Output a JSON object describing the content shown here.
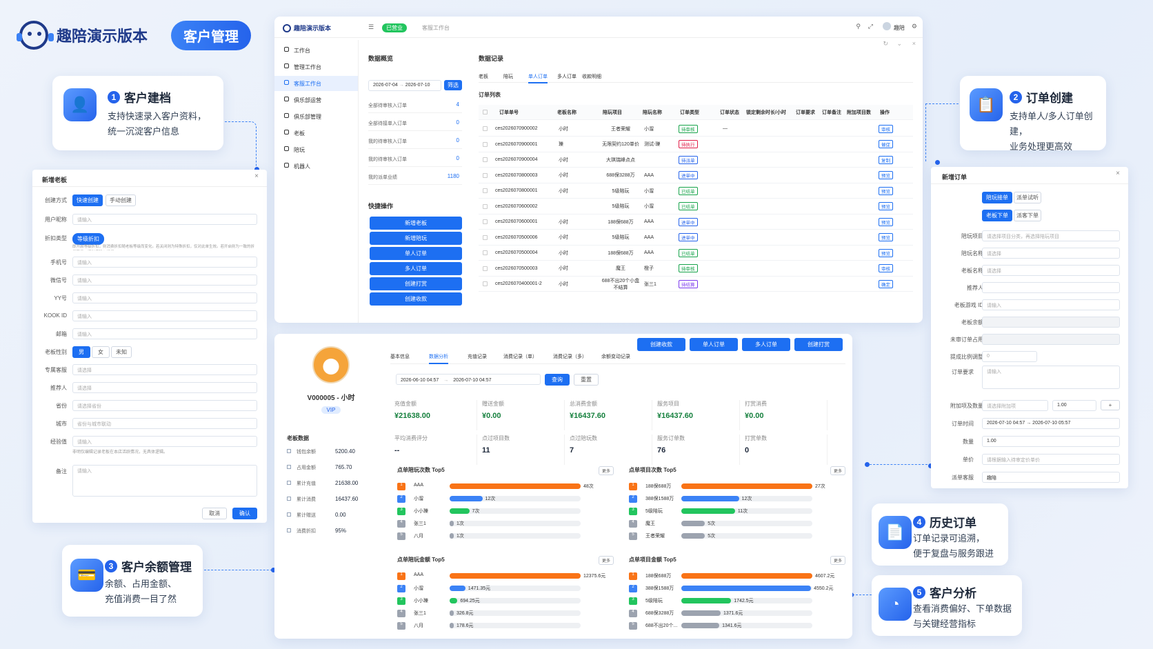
{
  "brand": {
    "name": "趣陪演示版本",
    "tag": "客户管理"
  },
  "features": [
    {
      "no": "1",
      "title": "客户建档",
      "desc1": "支持快速录入客户资料，",
      "desc2": "统一沉淀客户信息"
    },
    {
      "no": "2",
      "title": "订单创建",
      "desc1": "支持单人/多人订单创建，",
      "desc2": "业务处理更高效"
    },
    {
      "no": "3",
      "title": "客户余额管理",
      "desc1": "余额、占用金额、",
      "desc2": "充值消费一目了然"
    },
    {
      "no": "4",
      "title": "历史订单",
      "desc1": "订单记录可追溯，",
      "desc2": "便于复盘与服务跟进"
    },
    {
      "no": "5",
      "title": "客户分析",
      "desc1": "查看消费偏好、下单数据",
      "desc2": "与关键经营指标"
    }
  ],
  "newBoss": {
    "title": "新增老板",
    "mode_label": "创建方式",
    "mode_fast": "快速创建",
    "mode_manual": "手动创建",
    "fields": [
      {
        "l": "用户昵称",
        "p": "请输入"
      },
      {
        "l": "折扣类型",
        "p": ""
      },
      {
        "l": "手机号",
        "p": "请输入"
      },
      {
        "l": "微信号",
        "p": "请输入"
      },
      {
        "l": "YY号",
        "p": "请输入"
      },
      {
        "l": "KOOK ID",
        "p": "请输入"
      },
      {
        "l": "邮箱",
        "p": "请输入"
      }
    ],
    "discount_tag": "等级折扣",
    "discount_hint": "即开启等级折扣，则消费折扣随老板等级而变化。若关闭则为特殊折扣，仅对此单生效。若开启则为一致的折扣等级，请对应输入折扣。",
    "gender_label": "老板性别",
    "genders": [
      "男",
      "女",
      "未知"
    ],
    "fields2": [
      {
        "l": "专属客服",
        "p": "请选择"
      },
      {
        "l": "推荐人",
        "p": "请选择"
      },
      {
        "l": "省份",
        "p": "请选择省份"
      },
      {
        "l": "城市",
        "p": "省份与城市联动"
      },
      {
        "l": "经验值",
        "p": "请输入"
      }
    ],
    "exp_hint": "非明仅编辑记录老板在本店活跃情况，无具体逻辑。",
    "remark_label": "备注",
    "remark_p": "请输入",
    "cancel": "取消",
    "ok": "确认"
  },
  "app": {
    "title": "趣陪演示版本",
    "status": "已营业",
    "crumb": "客服工作台",
    "user": "趣陪",
    "menu": [
      "工作台",
      "管理工作台",
      "客服工作台",
      "俱乐部运营",
      "俱乐部管理",
      "老板",
      "陪玩",
      "机器人"
    ],
    "overview": {
      "title": "数据概览",
      "date1": "2026-07-04",
      "date2": "2026-07-10",
      "filter": "筛选",
      "items": [
        {
          "l": "全部待审核入订单",
          "v": "4"
        },
        {
          "l": "全部待接单入订单",
          "v": "0"
        },
        {
          "l": "我的待审核入订单",
          "v": "0"
        },
        {
          "l": "我的待审核入订单",
          "v": "0"
        },
        {
          "l": "我的派单业绩",
          "v": "1180"
        }
      ]
    },
    "quick": {
      "title": "快捷操作",
      "buttons": [
        "新增老板",
        "新增陪玩",
        "单人订单",
        "多人订单",
        "创建打赏",
        "创建收款"
      ]
    },
    "records": {
      "title": "数据记录",
      "tabs": [
        "老板",
        "陪玩",
        "单人订单",
        "多人订单",
        "收款明细"
      ],
      "list": "订单列表",
      "cols": [
        "订单单号",
        "老板名称",
        "陪玩项目",
        "陪玩名称",
        "订单类型",
        "订单状态",
        "锁定剩余时长/小时",
        "订单要求",
        "订单备注",
        "附加项目数",
        "操作"
      ],
      "rows": [
        {
          "no": "ces2026070900002",
          "boss": "小时",
          "item": "王者荣耀",
          "pw": "小溜",
          "type": "待审核",
          "tc": "#16a34a",
          "st": "—",
          "op": "审核"
        },
        {
          "no": "ces2026070900001",
          "boss": "瓅",
          "item": "无限契约120单价",
          "pw": "测试-瓅",
          "type": "待执行",
          "tc": "#e11d48",
          "st": "",
          "op": "催促"
        },
        {
          "no": "ces2026070900004",
          "boss": "小时",
          "item": "大琪瑞峰点点",
          "pw": "",
          "type": "待派单",
          "tc": "#2563eb",
          "st": "",
          "op": "复制"
        },
        {
          "no": "ces2026070800003",
          "boss": "小时",
          "item": "688保3288万",
          "pw": "AAA",
          "type": "进单中",
          "tc": "#2563eb",
          "st": "",
          "op": "预览"
        },
        {
          "no": "ces2026070800001",
          "boss": "小时",
          "item": "5级陪玩",
          "pw": "小溜",
          "type": "已结单",
          "tc": "#16a34a",
          "st": "",
          "op": "预览"
        },
        {
          "no": "ces2026070600002",
          "boss": "",
          "item": "5级陪玩",
          "pw": "小溜",
          "type": "已结单",
          "tc": "#16a34a",
          "st": "",
          "op": "预览"
        },
        {
          "no": "ces2026070600001",
          "boss": "小时",
          "item": "188保688万",
          "pw": "AAA",
          "type": "进单中",
          "tc": "#2563eb",
          "st": "",
          "op": "预览"
        },
        {
          "no": "ces2026070500006",
          "boss": "小时",
          "item": "5级陪玩",
          "pw": "AAA",
          "type": "进单中",
          "tc": "#2563eb",
          "st": "",
          "op": "预览"
        },
        {
          "no": "ces2026070500004",
          "boss": "小时",
          "item": "188保688万",
          "pw": "AAA",
          "type": "已结单",
          "tc": "#16a34a",
          "st": "",
          "op": "预览"
        },
        {
          "no": "ces2026070500003",
          "boss": "小时",
          "item": "魔王",
          "pw": "橙子",
          "type": "待审核",
          "tc": "#16a34a",
          "st": "",
          "op": "审核"
        },
        {
          "no": "ces2026070400001-2",
          "boss": "小时",
          "item": "688不出20个小盒不结算",
          "pw": "张三1",
          "type": "待结算",
          "tc": "#7c3aed",
          "st": "",
          "op": "确定"
        }
      ]
    }
  },
  "profile": {
    "name": "V000005 - 小时",
    "vip": "VIP",
    "section": "老板数据",
    "items": [
      {
        "l": "钱包余额",
        "v": "5200.40"
      },
      {
        "l": "占用金额",
        "v": "765.70"
      },
      {
        "l": "累计充值",
        "v": "21638.00"
      },
      {
        "l": "累计消费",
        "v": "16437.60"
      },
      {
        "l": "累计赠送",
        "v": "0.00"
      },
      {
        "l": "消费折扣",
        "v": "95%"
      }
    ]
  },
  "analysis": {
    "actions": [
      "创建收款",
      "单人订单",
      "多人订单",
      "创建打赏"
    ],
    "tabs": [
      "基本信息",
      "数据分析",
      "充值记录",
      "消费记录（单）",
      "消费记录（多）",
      "余额变动记录"
    ],
    "date1": "2026-06-10 04:57",
    "date2": "2026-07-10 04:57",
    "query": "查询",
    "reset": "重置",
    "stats": [
      {
        "l": "充值金额",
        "v": "¥21638.00",
        "g": 1
      },
      {
        "l": "赠送金额",
        "v": "¥0.00",
        "g": 1
      },
      {
        "l": "总消费金额",
        "v": "¥16437.60",
        "g": 1
      },
      {
        "l": "服务项目",
        "v": "¥16437.60",
        "g": 1
      },
      {
        "l": "打赏消费",
        "v": "¥0.00",
        "g": 1
      },
      {
        "l": "平均消费评分",
        "v": "--",
        "g": 0
      },
      {
        "l": "点过项目数",
        "v": "11",
        "g": 0
      },
      {
        "l": "点过陪玩数",
        "v": "7",
        "g": 0
      },
      {
        "l": "服务订单数",
        "v": "76",
        "g": 0
      },
      {
        "l": "打赏单数",
        "v": "0",
        "g": 0
      }
    ],
    "more": "更多",
    "panels": [
      {
        "title": "点单陪玩次数 Top5",
        "rows": [
          {
            "n": "AAA",
            "v": "48次",
            "f": 1.0
          },
          {
            "n": "小溜",
            "v": "12次",
            "f": 0.25
          },
          {
            "n": "小小瓅",
            "v": "7次",
            "f": 0.15
          },
          {
            "n": "张三1",
            "v": "1次",
            "f": 0.02
          },
          {
            "n": "八月",
            "v": "1次",
            "f": 0.02
          }
        ]
      },
      {
        "title": "点单项目次数 Top5",
        "rows": [
          {
            "n": "188保688万",
            "v": "27次",
            "f": 1.0
          },
          {
            "n": "388保1588万",
            "v": "12次",
            "f": 0.44
          },
          {
            "n": "5级陪玩",
            "v": "11次",
            "f": 0.41
          },
          {
            "n": "魔王",
            "v": "5次",
            "f": 0.18
          },
          {
            "n": "王者荣耀",
            "v": "5次",
            "f": 0.18
          }
        ]
      },
      {
        "title": "点单陪玩金额 Top5",
        "rows": [
          {
            "n": "AAA",
            "v": "12375.6元",
            "f": 1.0
          },
          {
            "n": "小溜",
            "v": "1471.35元",
            "f": 0.12
          },
          {
            "n": "小小瓅",
            "v": "694.25元",
            "f": 0.06
          },
          {
            "n": "张三1",
            "v": "326.8元",
            "f": 0.03
          },
          {
            "n": "八月",
            "v": "178.6元",
            "f": 0.02
          }
        ]
      },
      {
        "title": "点单项目金额 Top5",
        "rows": [
          {
            "n": "188保688万",
            "v": "4607.2元",
            "f": 1.0
          },
          {
            "n": "388保1588万",
            "v": "4550.2元",
            "f": 0.99
          },
          {
            "n": "5级陪玩",
            "v": "1742.5元",
            "f": 0.38
          },
          {
            "n": "688保3288万",
            "v": "1371.6元",
            "f": 0.3
          },
          {
            "n": "688不出20个...",
            "v": "1341.6元",
            "f": 0.29
          }
        ]
      }
    ]
  },
  "newOrder": {
    "title": "新增订单",
    "tabA": [
      "陪玩接单",
      "派单试听"
    ],
    "tabB": [
      "老板下单",
      "派客下单"
    ],
    "fields": [
      {
        "l": "陪玩项目",
        "p": "请选择项目分类，再选择陪玩项目"
      },
      {
        "l": "陪玩名称",
        "p": "请选择"
      },
      {
        "l": "老板名称",
        "p": "请选择"
      },
      {
        "l": "推荐人",
        "p": ""
      },
      {
        "l": "老板游戏 ID",
        "p": "请输入"
      },
      {
        "l": "老板余额",
        "p": ""
      },
      {
        "l": "未审订单占用",
        "p": ""
      },
      {
        "l": "提成比例调整",
        "p": "0"
      }
    ],
    "req_label": "订单要求",
    "req_p": "请输入",
    "extra_label": "附加项及数量",
    "extra_p": "请选择附加项",
    "extra_v": "1.00",
    "time_label": "订单时间",
    "t1": "2026-07-10 04:57",
    "t2": "2026-07-10 05:57",
    "qty_label": "数量",
    "qty": "1.00",
    "price_label": "单价",
    "price_p": "请根据输入待审定价单价",
    "cs_label": "派单客服",
    "cs": "趣陪"
  }
}
